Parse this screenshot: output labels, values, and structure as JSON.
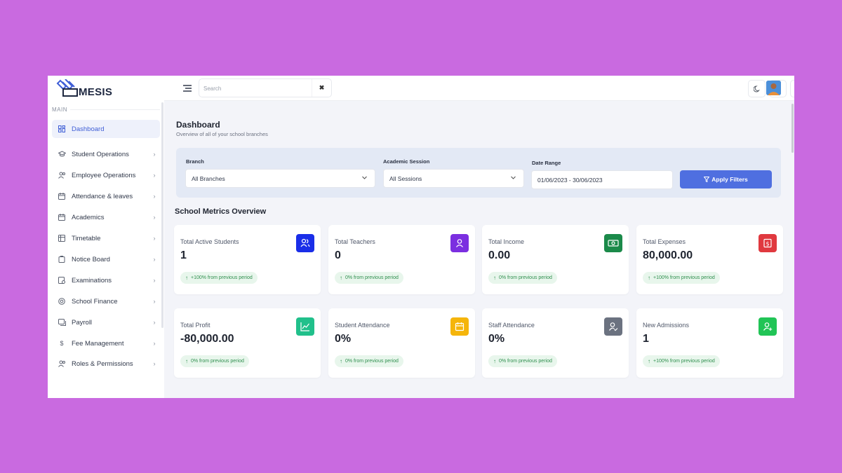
{
  "brand": {
    "logo_text": "MESIS"
  },
  "sidebar": {
    "section_label": "MAIN",
    "items": [
      {
        "label": "Dashboard",
        "icon": "dashboard-icon",
        "active": true
      },
      {
        "label": "Student Operations",
        "icon": "graduation-cap-icon"
      },
      {
        "label": "Employee Operations",
        "icon": "users-icon"
      },
      {
        "label": "Attendance & leaves",
        "icon": "calendar-check-icon"
      },
      {
        "label": "Academics",
        "icon": "calendar-edit-icon"
      },
      {
        "label": "Timetable",
        "icon": "table-icon"
      },
      {
        "label": "Notice Board",
        "icon": "notice-icon"
      },
      {
        "label": "Examinations",
        "icon": "exam-icon"
      },
      {
        "label": "School Finance",
        "icon": "finance-icon"
      },
      {
        "label": "Payroll",
        "icon": "payroll-icon"
      },
      {
        "label": "Fee Management",
        "icon": "dollar-icon"
      },
      {
        "label": "Roles & Permissions",
        "icon": "roles-icon"
      }
    ]
  },
  "topbar": {
    "search_placeholder": "Search",
    "clear_icon": "close-icon",
    "icons": [
      "moon-icon",
      "document-icon",
      "fullscreen-icon"
    ]
  },
  "page": {
    "title": "Dashboard",
    "subtitle": "Overview of all of your school branches"
  },
  "filters": {
    "branch_label": "Branch",
    "branch_value": "All Branches",
    "session_label": "Academic Session",
    "session_value": "All Sessions",
    "date_label": "Date Range",
    "date_value": "01/06/2023 - 30/06/2023",
    "apply_label": "Apply Filters"
  },
  "metrics": {
    "title": "School Metrics Overview",
    "cards": [
      {
        "label": "Total Active Students",
        "value": "1",
        "change": "+100% from previous period",
        "icon": "students-icon",
        "color": "#1a2ee8"
      },
      {
        "label": "Total Teachers",
        "value": "0",
        "change": "0% from previous period",
        "icon": "teacher-icon",
        "color": "#7b2fe0"
      },
      {
        "label": "Total Income",
        "value": "0.00",
        "change": "0% from previous period",
        "icon": "money-icon",
        "color": "#1b8a4a"
      },
      {
        "label": "Total Expenses",
        "value": "80,000.00",
        "change": "+100% from previous period",
        "icon": "expense-icon",
        "color": "#e0393f"
      },
      {
        "label": "Total Profit",
        "value": "-80,000.00",
        "change": "0% from previous period",
        "icon": "chart-line-icon",
        "color": "#21c08b"
      },
      {
        "label": "Student Attendance",
        "value": "0%",
        "change": "0% from previous period",
        "icon": "calendar-icon",
        "color": "#f5b50b"
      },
      {
        "label": "Staff Attendance",
        "value": "0%",
        "change": "0% from previous period",
        "icon": "user-check-icon",
        "color": "#6b7280"
      },
      {
        "label": "New Admissions",
        "value": "1",
        "change": "+100% from previous period",
        "icon": "user-plus-icon",
        "color": "#21c456"
      }
    ]
  }
}
